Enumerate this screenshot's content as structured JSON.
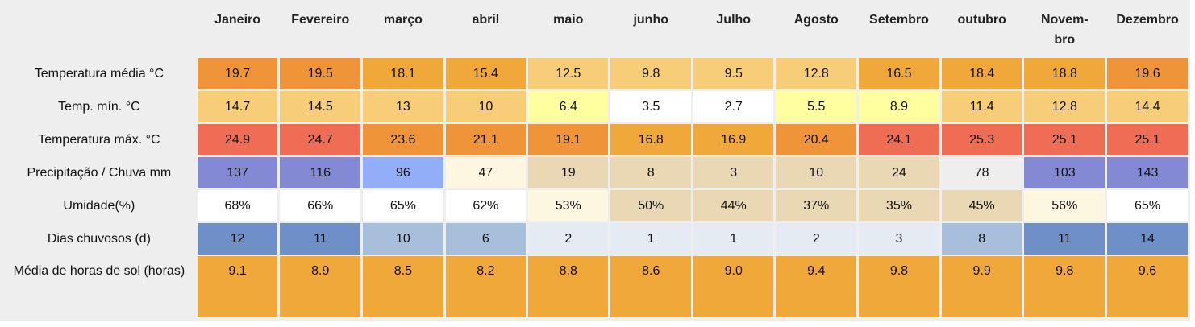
{
  "table": {
    "months": [
      "Janeiro",
      "Fevereiro",
      "março",
      "abril",
      "maio",
      "junho",
      "Julho",
      "Agosto",
      "Setembro",
      "outubro",
      "Novem-\nbro",
      "Dezembro"
    ],
    "rows": [
      {
        "label": "Temperatura média °C",
        "values": [
          "19.7",
          "19.5",
          "18.1",
          "15.4",
          "12.5",
          "9.8",
          "9.5",
          "12.8",
          "16.5",
          "18.4",
          "18.8",
          "19.6"
        ],
        "colors": [
          "#f0943a",
          "#f0943a",
          "#f1a83b",
          "#f1a83b",
          "#f7cd78",
          "#f7cd78",
          "#f7cd78",
          "#f7cd78",
          "#f1a83b",
          "#f1a83b",
          "#f1a83b",
          "#f0943a"
        ]
      },
      {
        "label": "Temp. mín. °C",
        "values": [
          "14.7",
          "14.5",
          "13",
          "10",
          "6.4",
          "3.5",
          "2.7",
          "5.5",
          "8.9",
          "11.4",
          "12.8",
          "14.4"
        ],
        "colors": [
          "#f7cd78",
          "#f7cd78",
          "#f7cd78",
          "#f7cd78",
          "#ffff9f",
          "#ffffff",
          "#ffffff",
          "#ffff9f",
          "#ffff9f",
          "#f7cd78",
          "#f7cd78",
          "#f7cd78"
        ]
      },
      {
        "label": "Temperatura máx. °C",
        "values": [
          "24.9",
          "24.7",
          "23.6",
          "21.1",
          "19.1",
          "16.8",
          "16.9",
          "20.4",
          "24.1",
          "25.3",
          "25.1",
          "25.1"
        ],
        "colors": [
          "#ef6d55",
          "#ef6d55",
          "#f0943a",
          "#f0943a",
          "#f0943a",
          "#f1a83b",
          "#f1a83b",
          "#f0943a",
          "#ef6d55",
          "#ef6d55",
          "#ef6d55",
          "#ef6d55"
        ]
      },
      {
        "label": "Precipitação / Chuva mm",
        "values": [
          "137",
          "116",
          "96",
          "47",
          "19",
          "8",
          "3",
          "10",
          "24",
          "78",
          "103",
          "143"
        ],
        "colors": [
          "#8489d4",
          "#8489d4",
          "#93aef8",
          "#fdf6e0",
          "#e9d8b3",
          "#e9d8b3",
          "#e9d8b3",
          "#e9d8b3",
          "#e9d8b3",
          "#eeeeee",
          "#8489d4",
          "#8489d4"
        ]
      },
      {
        "label": "Umidade(%)",
        "values": [
          "68%",
          "66%",
          "65%",
          "62%",
          "53%",
          "50%",
          "44%",
          "37%",
          "35%",
          "45%",
          "56%",
          "65%"
        ],
        "colors": [
          "#ffffff",
          "#ffffff",
          "#ffffff",
          "#ffffff",
          "#fdf6e0",
          "#e9d8b3",
          "#e9d8b3",
          "#e9d8b3",
          "#e9d8b3",
          "#e9d8b3",
          "#fdf6e0",
          "#ffffff"
        ]
      },
      {
        "label": "Dias chuvosos (d)",
        "values": [
          "12",
          "11",
          "10",
          "6",
          "2",
          "1",
          "1",
          "2",
          "3",
          "8",
          "11",
          "14"
        ],
        "colors": [
          "#6e8fc7",
          "#6e8fc7",
          "#a8bfdc",
          "#a8bfdc",
          "#e4ebf3",
          "#e4ebf3",
          "#e4ebf3",
          "#e4ebf3",
          "#e4ebf3",
          "#a8bfdc",
          "#6e8fc7",
          "#6e8fc7"
        ]
      },
      {
        "label": "Média de horas de sol (horas)",
        "values": [
          "9.1",
          "8.9",
          "8.5",
          "8.2",
          "8.8",
          "8.6",
          "9.0",
          "9.4",
          "9.8",
          "9.9",
          "9.8",
          "9.6"
        ],
        "colors": [
          "#f1a83b",
          "#f1a83b",
          "#f1a83b",
          "#f1a83b",
          "#f1a83b",
          "#f1a83b",
          "#f1a83b",
          "#f1a83b",
          "#f1a83b",
          "#f1a83b",
          "#f1a83b",
          "#f1a83b"
        ]
      }
    ]
  }
}
